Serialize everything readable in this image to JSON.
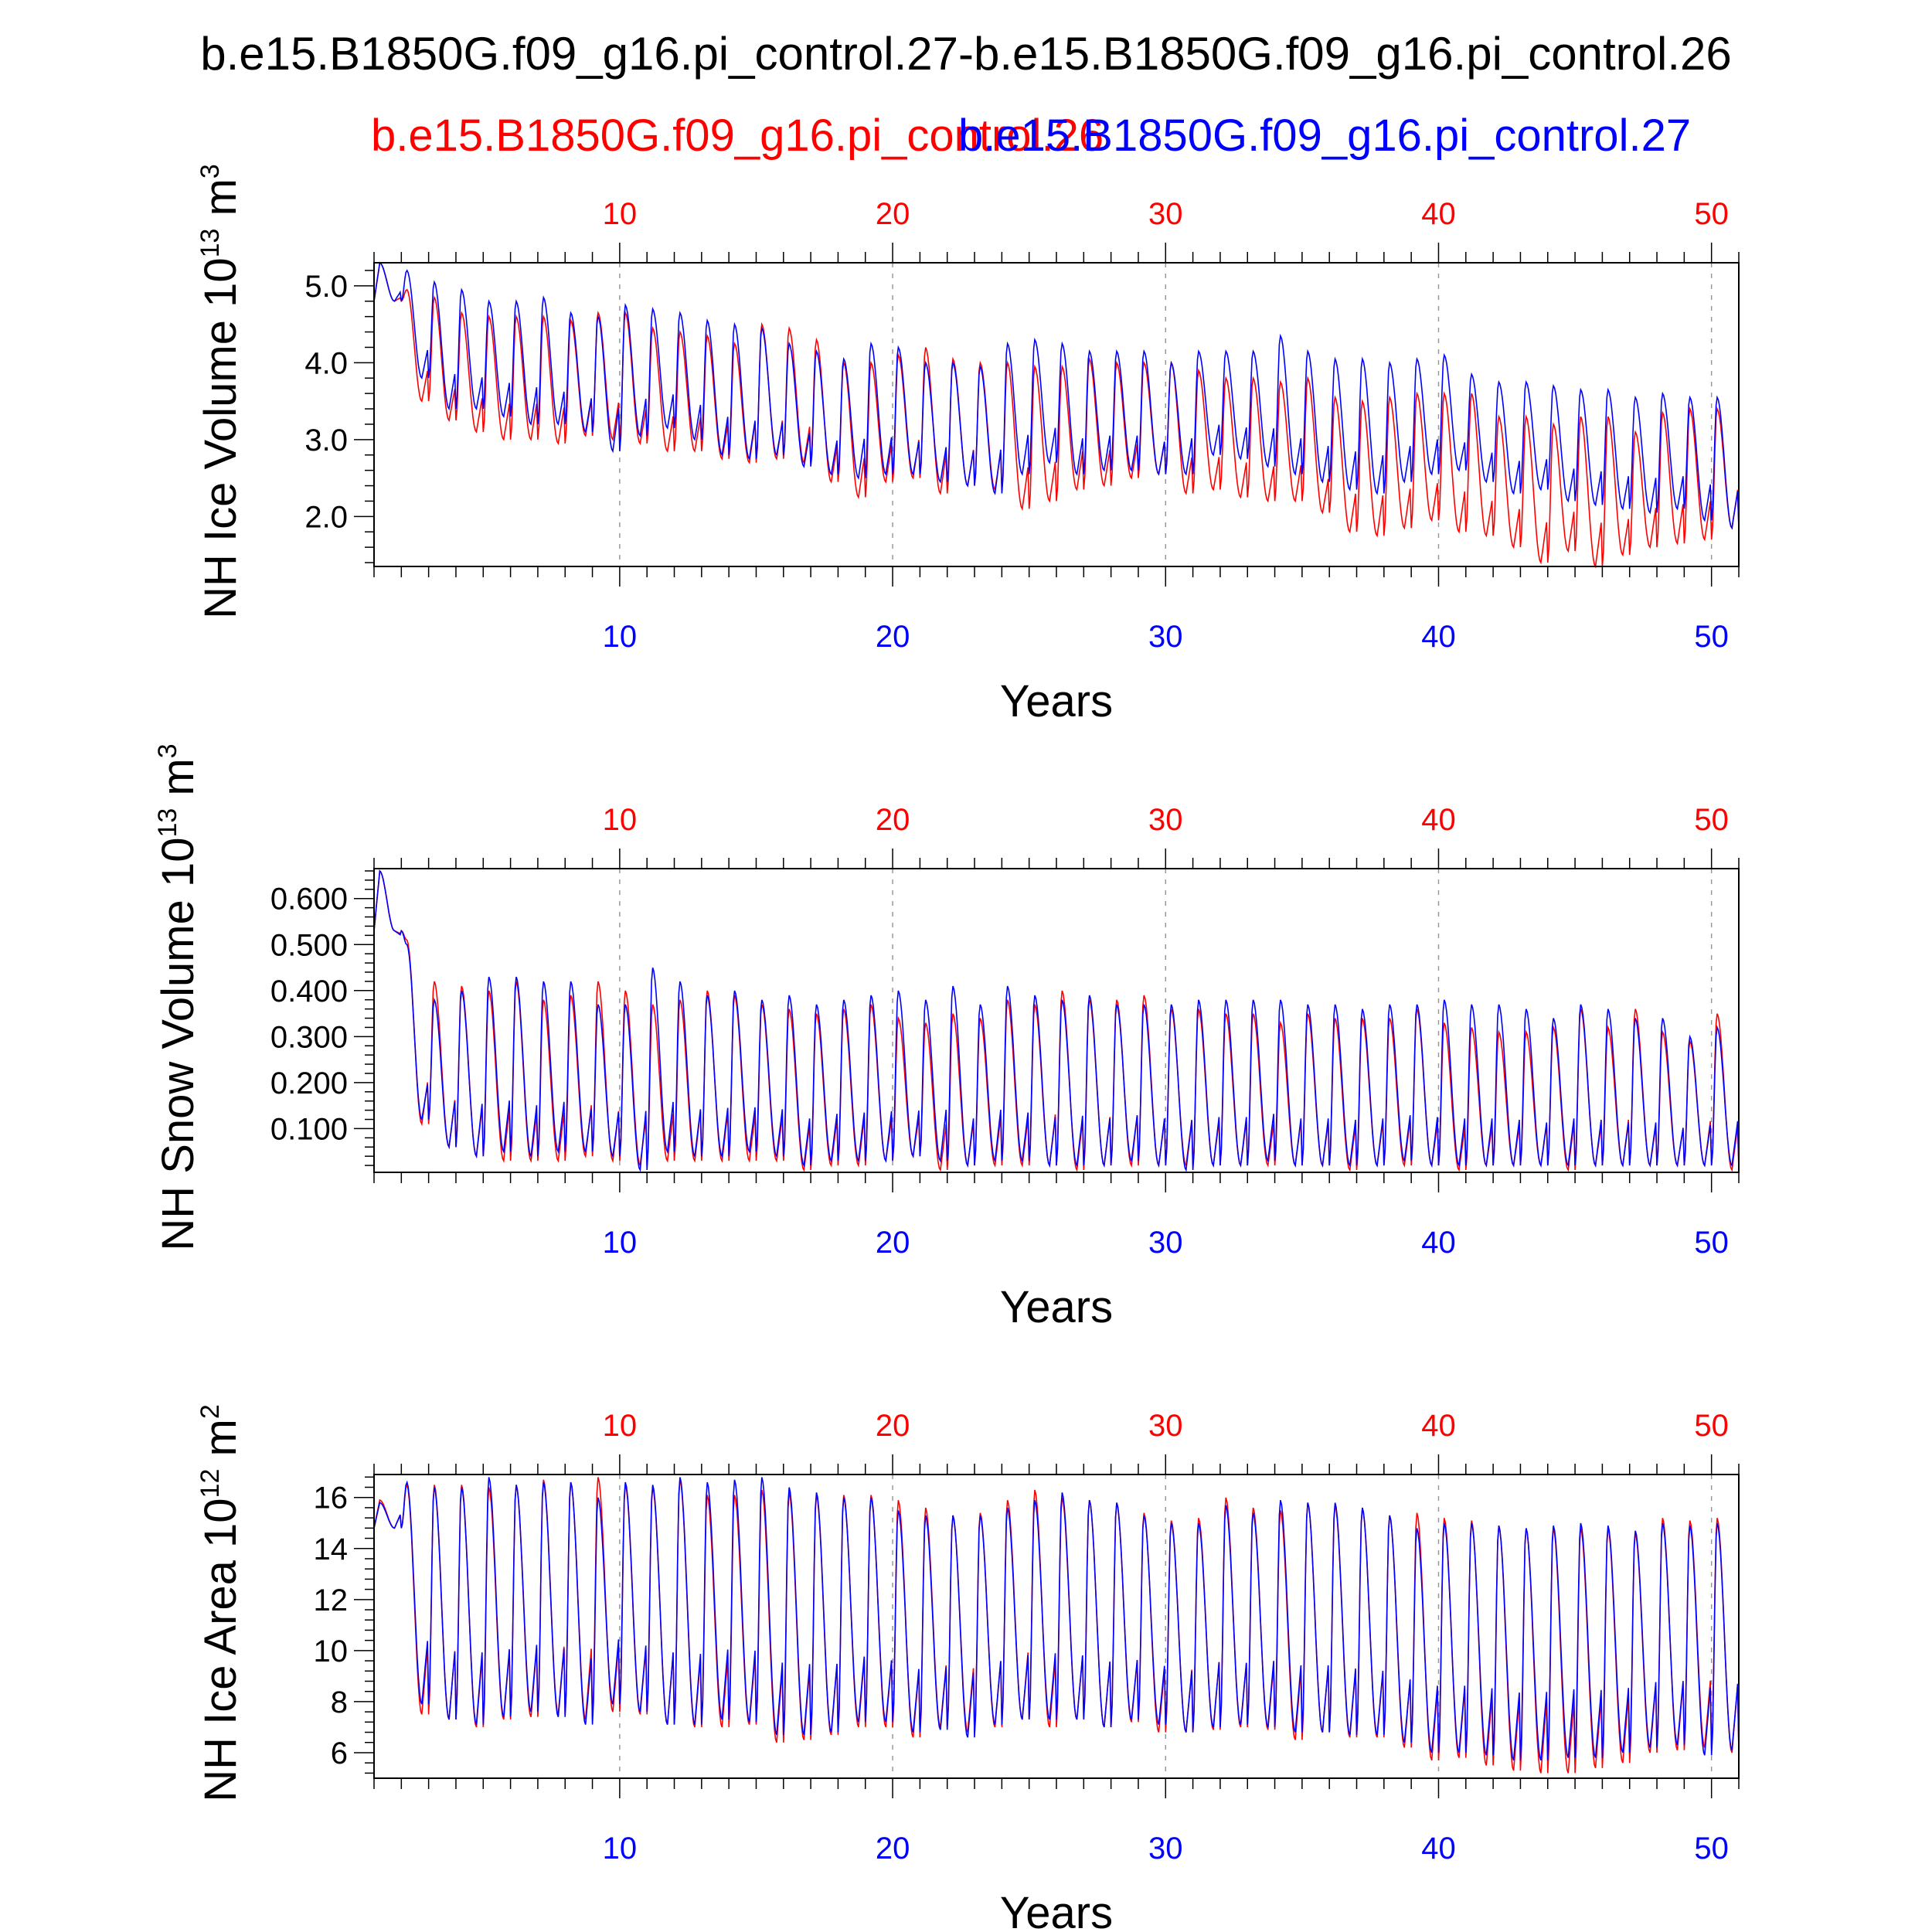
{
  "page": {
    "title": "b.e15.B1850G.f09_g16.pi_control.27-b.e15.B1850G.f09_g16.pi_control.26",
    "legend": [
      {
        "label": "b.e15.B1850G.f09_g16.pi_control.26",
        "color": "#ff0000"
      },
      {
        "label": "b.e15.B1850G.f09_g16.pi_control.27",
        "color": "#0000ff"
      }
    ]
  },
  "chart_data": [
    {
      "type": "line",
      "ylabel": "NH Ice Volume 10",
      "ylabel_exp": "13",
      "ylabel_unit": " m",
      "ylabel_unit_exp": "3",
      "xlabel": "Years",
      "xlim": [
        1,
        51
      ],
      "ylim": [
        1.35,
        5.3
      ],
      "yticks": [
        2.0,
        3.0,
        4.0,
        5.0
      ],
      "ytick_labels": [
        "2.0",
        "3.0",
        "4.0",
        "5.0"
      ],
      "xticks": [
        10,
        20,
        30,
        40,
        50
      ],
      "top_tick_labels": [
        "10",
        "20",
        "30",
        "40",
        "50"
      ],
      "bottom_tick_labels": [
        "10",
        "20",
        "30",
        "40",
        "50"
      ],
      "series": [
        {
          "name": "b.e15.B1850G.f09_g16.pi_control.26",
          "color": "#ff0000",
          "annual_max": [
            5.3,
            4.95,
            4.85,
            4.65,
            4.6,
            4.6,
            4.6,
            4.55,
            4.65,
            4.65,
            4.45,
            4.4,
            4.35,
            4.25,
            4.5,
            4.45,
            4.3,
            4.0,
            4.0,
            4.1,
            4.2,
            4.05,
            4.0,
            4.0,
            3.95,
            3.95,
            4.05,
            4.0,
            4.0,
            4.0,
            3.9,
            3.8,
            3.8,
            3.75,
            3.8,
            3.55,
            3.5,
            3.55,
            3.6,
            3.6,
            3.6,
            3.3,
            3.3,
            3.2,
            3.3,
            3.3,
            3.1,
            3.35,
            3.4,
            3.4,
            3.55
          ],
          "annual_min": [
            4.8,
            3.5,
            3.25,
            3.1,
            3.0,
            3.0,
            2.95,
            3.05,
            3.0,
            2.95,
            2.85,
            2.85,
            2.75,
            2.7,
            2.75,
            2.7,
            2.45,
            2.25,
            2.45,
            2.5,
            2.3,
            2.4,
            2.35,
            2.1,
            2.2,
            2.35,
            2.4,
            2.5,
            2.55,
            2.3,
            2.35,
            2.25,
            2.2,
            2.2,
            2.05,
            1.8,
            1.75,
            1.85,
            1.95,
            1.8,
            1.75,
            1.6,
            1.4,
            1.55,
            1.35,
            1.5,
            1.6,
            1.65,
            1.7,
            1.85,
            1.95
          ]
        },
        {
          "name": "b.e15.B1850G.f09_g16.pi_control.27",
          "color": "#0000ff",
          "annual_max": [
            5.3,
            5.2,
            5.05,
            4.95,
            4.8,
            4.8,
            4.85,
            4.65,
            4.6,
            4.75,
            4.7,
            4.65,
            4.55,
            4.5,
            4.45,
            4.25,
            4.15,
            4.05,
            4.25,
            4.2,
            4.0,
            4.0,
            3.95,
            4.25,
            4.3,
            4.25,
            4.15,
            4.15,
            4.15,
            4.0,
            4.15,
            4.15,
            4.15,
            4.35,
            4.15,
            4.05,
            4.05,
            4.0,
            4.05,
            4.1,
            3.85,
            3.75,
            3.75,
            3.7,
            3.65,
            3.65,
            3.55,
            3.6,
            3.55,
            3.55,
            3.5
          ],
          "annual_min": [
            4.8,
            3.8,
            3.4,
            3.4,
            3.3,
            3.2,
            3.2,
            3.1,
            2.85,
            3.05,
            3.15,
            3.0,
            2.8,
            2.75,
            2.8,
            2.65,
            2.55,
            2.5,
            2.55,
            2.55,
            2.45,
            2.4,
            2.3,
            2.55,
            2.7,
            2.55,
            2.6,
            2.6,
            2.55,
            2.55,
            2.8,
            2.75,
            2.65,
            2.55,
            2.45,
            2.35,
            2.3,
            2.45,
            2.55,
            2.6,
            2.45,
            2.3,
            2.35,
            2.2,
            2.15,
            2.1,
            2.05,
            2.1,
            1.95,
            1.85,
            1.9
          ]
        }
      ]
    },
    {
      "type": "line",
      "ylabel": "NH Snow Volume 10",
      "ylabel_exp": "13",
      "ylabel_unit": " m",
      "ylabel_unit_exp": "3",
      "xlabel": "Years",
      "xlim": [
        1,
        51
      ],
      "ylim": [
        0.005,
        0.665
      ],
      "yticks": [
        0.1,
        0.2,
        0.3,
        0.4,
        0.5,
        0.6
      ],
      "ytick_labels": [
        "0.100",
        "0.200",
        "0.300",
        "0.400",
        "0.500",
        "0.600"
      ],
      "xticks": [
        10,
        20,
        30,
        40,
        50
      ],
      "top_tick_labels": [
        "10",
        "20",
        "30",
        "40",
        "50"
      ],
      "bottom_tick_labels": [
        "10",
        "20",
        "30",
        "40",
        "50"
      ],
      "series": [
        {
          "name": "b.e15.B1850G.f09_g16.pi_control.26",
          "color": "#ff0000",
          "annual_max": [
            0.66,
            0.51,
            0.42,
            0.41,
            0.4,
            0.42,
            0.38,
            0.39,
            0.42,
            0.4,
            0.37,
            0.38,
            0.4,
            0.39,
            0.37,
            0.36,
            0.35,
            0.36,
            0.37,
            0.34,
            0.33,
            0.35,
            0.34,
            0.38,
            0.37,
            0.4,
            0.38,
            0.38,
            0.39,
            0.36,
            0.36,
            0.35,
            0.35,
            0.33,
            0.35,
            0.34,
            0.34,
            0.34,
            0.36,
            0.33,
            0.32,
            0.31,
            0.31,
            0.32,
            0.36,
            0.32,
            0.36,
            0.31,
            0.29,
            0.35,
            0.34
          ],
          "annual_min": [
            0.53,
            0.11,
            0.06,
            0.04,
            0.03,
            0.03,
            0.03,
            0.04,
            0.03,
            0.02,
            0.03,
            0.03,
            0.03,
            0.03,
            0.03,
            0.01,
            0.02,
            0.02,
            0.03,
            0.04,
            0.01,
            0.02,
            0.02,
            0.02,
            0.02,
            0.01,
            0.02,
            0.02,
            0.02,
            0.02,
            0.02,
            0.02,
            0.02,
            0.02,
            0.02,
            0.01,
            0.02,
            0.02,
            0.02,
            0.01,
            0.02,
            0.02,
            0.02,
            0.01,
            0.02,
            0.02,
            0.02,
            0.02,
            0.02,
            0.01,
            0.03
          ]
        },
        {
          "name": "b.e15.B1850G.f09_g16.pi_control.27",
          "color": "#0000ff",
          "annual_max": [
            0.66,
            0.5,
            0.38,
            0.4,
            0.43,
            0.43,
            0.42,
            0.42,
            0.37,
            0.37,
            0.45,
            0.42,
            0.39,
            0.4,
            0.38,
            0.39,
            0.37,
            0.38,
            0.39,
            0.4,
            0.38,
            0.41,
            0.37,
            0.41,
            0.39,
            0.38,
            0.39,
            0.37,
            0.37,
            0.37,
            0.38,
            0.38,
            0.38,
            0.38,
            0.37,
            0.37,
            0.36,
            0.37,
            0.37,
            0.38,
            0.37,
            0.37,
            0.36,
            0.34,
            0.37,
            0.36,
            0.34,
            0.34,
            0.3,
            0.32,
            0.35
          ],
          "annual_min": [
            0.53,
            0.12,
            0.06,
            0.04,
            0.05,
            0.04,
            0.05,
            0.05,
            0.04,
            0.01,
            0.05,
            0.04,
            0.04,
            0.05,
            0.04,
            0.02,
            0.03,
            0.03,
            0.03,
            0.04,
            0.03,
            0.02,
            0.03,
            0.03,
            0.02,
            0.02,
            0.02,
            0.03,
            0.02,
            0.01,
            0.02,
            0.02,
            0.03,
            0.02,
            0.02,
            0.02,
            0.02,
            0.03,
            0.02,
            0.02,
            0.02,
            0.02,
            0.02,
            0.02,
            0.02,
            0.02,
            0.02,
            0.02,
            0.02,
            0.02,
            0.04
          ]
        }
      ]
    },
    {
      "type": "line",
      "ylabel": "NH Ice Area 10",
      "ylabel_exp": "12",
      "ylabel_unit": " m",
      "ylabel_unit_exp": "2",
      "xlabel": "Years",
      "xlim": [
        1,
        51
      ],
      "ylim": [
        5.0,
        16.9
      ],
      "yticks": [
        6,
        8,
        10,
        12,
        14,
        16
      ],
      "ytick_labels": [
        "6",
        "8",
        "10",
        "12",
        "14",
        "16"
      ],
      "xticks": [
        10,
        20,
        30,
        40,
        50
      ],
      "top_tick_labels": [
        "10",
        "20",
        "30",
        "40",
        "50"
      ],
      "bottom_tick_labels": [
        "10",
        "20",
        "30",
        "40",
        "50"
      ],
      "series": [
        {
          "name": "b.e15.B1850G.f09_g16.pi_control.26",
          "color": "#ff0000",
          "annual_max": [
            15.9,
            16.5,
            16.5,
            16.5,
            16.4,
            16.5,
            16.7,
            16.6,
            16.8,
            16.5,
            16.4,
            16.7,
            16.1,
            16.1,
            16.3,
            16.2,
            16.1,
            16.1,
            16.1,
            15.9,
            15.6,
            15.3,
            15.4,
            15.9,
            16.3,
            16.0,
            15.9,
            15.8,
            15.4,
            15.1,
            15.2,
            16.0,
            15.6,
            15.5,
            15.8,
            15.7,
            15.6,
            15.3,
            15.4,
            15.2,
            15.1,
            14.9,
            14.8,
            14.8,
            14.8,
            14.8,
            14.6,
            15.2,
            15.1,
            15.2,
            15.2
          ],
          "annual_min": [
            14.8,
            7.5,
            7.3,
            7.0,
            7.3,
            7.4,
            7.5,
            7.3,
            7.6,
            7.5,
            7.1,
            7.0,
            7.0,
            7.1,
            6.4,
            6.5,
            6.7,
            7.0,
            7.0,
            6.6,
            7.0,
            6.8,
            7.0,
            7.3,
            7.0,
            7.3,
            7.0,
            7.2,
            6.8,
            6.8,
            6.9,
            7.0,
            6.9,
            6.5,
            6.8,
            6.6,
            6.6,
            6.2,
            5.7,
            5.8,
            5.5,
            5.3,
            5.2,
            5.2,
            5.4,
            5.6,
            6.0,
            6.1,
            6.2,
            6.0,
            6.8
          ]
        },
        {
          "name": "b.e15.B1850G.f09_g16.pi_control.27",
          "color": "#0000ff",
          "annual_max": [
            15.8,
            16.6,
            16.4,
            16.4,
            16.8,
            16.5,
            16.6,
            16.6,
            16.0,
            16.6,
            16.5,
            16.8,
            16.6,
            16.7,
            16.8,
            16.4,
            16.2,
            16.0,
            16.0,
            15.5,
            15.3,
            15.3,
            15.3,
            15.6,
            15.9,
            16.2,
            15.9,
            15.8,
            15.3,
            15.0,
            15.0,
            15.7,
            15.4,
            15.9,
            15.8,
            15.8,
            15.6,
            15.3,
            14.8,
            15.0,
            15.0,
            14.9,
            14.8,
            14.9,
            15.0,
            14.9,
            14.7,
            15.0,
            14.9,
            15.0,
            15.0
          ],
          "annual_min": [
            14.8,
            7.9,
            7.3,
            7.1,
            7.4,
            7.6,
            7.4,
            7.1,
            7.9,
            7.6,
            7.1,
            7.1,
            7.3,
            7.2,
            6.7,
            6.7,
            6.8,
            7.2,
            7.2,
            6.8,
            6.9,
            6.6,
            7.1,
            7.3,
            7.3,
            7.3,
            7.0,
            7.3,
            7.1,
            6.8,
            7.0,
            7.1,
            7.0,
            6.8,
            6.8,
            6.7,
            6.7,
            6.4,
            6.0,
            6.0,
            5.9,
            5.7,
            5.7,
            5.8,
            5.8,
            6.0,
            6.2,
            6.3,
            5.9,
            6.1,
            6.8
          ]
        }
      ]
    }
  ]
}
